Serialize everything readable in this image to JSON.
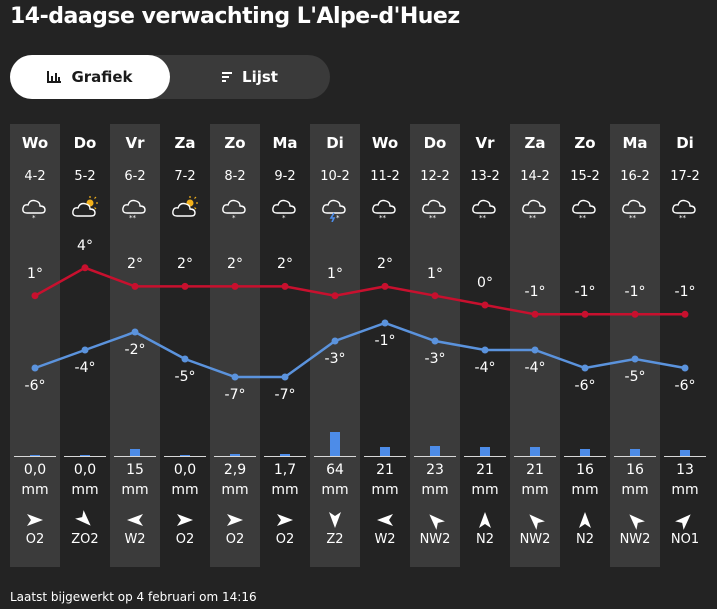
{
  "title": "14-daagse verwachting L'Alpe-d'Huez",
  "tabs": [
    {
      "label": "Grafiek",
      "active": true
    },
    {
      "label": "Lijst",
      "active": false
    }
  ],
  "colors": {
    "max_temp": "#c8102e",
    "min_temp": "#5b93dd",
    "precip": "#4d8ce8",
    "shade": "#3b3b3b"
  },
  "days": [
    {
      "day": "Wo",
      "date": "4-2",
      "icon": "cloud-snow-icon",
      "max": "1°",
      "min": "-6°",
      "precip": "0,0",
      "unit": "mm",
      "wind_dir": "O2",
      "wind_icon": "arrow-east-icon"
    },
    {
      "day": "Do",
      "date": "5-2",
      "icon": "sun-cloud-icon",
      "max": "4°",
      "min": "-4°",
      "precip": "0,0",
      "unit": "mm",
      "wind_dir": "ZO2",
      "wind_icon": "arrow-southeast-icon"
    },
    {
      "day": "Vr",
      "date": "6-2",
      "icon": "cloud-heavy-snow-icon",
      "max": "2°",
      "min": "-2°",
      "precip": "15",
      "unit": "mm",
      "wind_dir": "W2",
      "wind_icon": "arrow-west-icon"
    },
    {
      "day": "Za",
      "date": "7-2",
      "icon": "sun-cloud-icon",
      "max": "2°",
      "min": "-5°",
      "precip": "0,0",
      "unit": "mm",
      "wind_dir": "O2",
      "wind_icon": "arrow-east-icon"
    },
    {
      "day": "Zo",
      "date": "8-2",
      "icon": "cloud-snow-icon",
      "max": "2°",
      "min": "-7°",
      "precip": "2,9",
      "unit": "mm",
      "wind_dir": "O2",
      "wind_icon": "arrow-east-icon"
    },
    {
      "day": "Ma",
      "date": "9-2",
      "icon": "cloud-snow-icon",
      "max": "2°",
      "min": "-7°",
      "precip": "1,7",
      "unit": "mm",
      "wind_dir": "O2",
      "wind_icon": "arrow-east-icon"
    },
    {
      "day": "Di",
      "date": "10-2",
      "icon": "cloud-thunder-snow-icon",
      "max": "1°",
      "min": "-3°",
      "precip": "64",
      "unit": "mm",
      "wind_dir": "Z2",
      "wind_icon": "arrow-south-icon"
    },
    {
      "day": "Wo",
      "date": "11-2",
      "icon": "cloud-heavy-snow-icon",
      "max": "2°",
      "min": "-1°",
      "precip": "21",
      "unit": "mm",
      "wind_dir": "W2",
      "wind_icon": "arrow-west-icon"
    },
    {
      "day": "Do",
      "date": "12-2",
      "icon": "cloud-heavy-snow-icon",
      "max": "1°",
      "min": "-3°",
      "precip": "23",
      "unit": "mm",
      "wind_dir": "NW2",
      "wind_icon": "arrow-northwest-icon"
    },
    {
      "day": "Vr",
      "date": "13-2",
      "icon": "cloud-heavy-snow-icon",
      "max": "0°",
      "min": "-4°",
      "precip": "21",
      "unit": "mm",
      "wind_dir": "N2",
      "wind_icon": "arrow-north-icon"
    },
    {
      "day": "Za",
      "date": "14-2",
      "icon": "cloud-heavy-snow-icon",
      "max": "-1°",
      "min": "-4°",
      "precip": "21",
      "unit": "mm",
      "wind_dir": "NW2",
      "wind_icon": "arrow-northwest-icon"
    },
    {
      "day": "Zo",
      "date": "15-2",
      "icon": "cloud-heavy-snow-icon",
      "max": "-1°",
      "min": "-6°",
      "precip": "16",
      "unit": "mm",
      "wind_dir": "N2",
      "wind_icon": "arrow-north-icon"
    },
    {
      "day": "Ma",
      "date": "16-2",
      "icon": "cloud-heavy-snow-icon",
      "max": "-1°",
      "min": "-5°",
      "precip": "16",
      "unit": "mm",
      "wind_dir": "NW2",
      "wind_icon": "arrow-northwest-icon"
    },
    {
      "day": "Di",
      "date": "17-2",
      "icon": "cloud-heavy-snow-icon",
      "max": "-1°",
      "min": "-6°",
      "precip": "13",
      "unit": "mm",
      "wind_dir": "NO1",
      "wind_icon": "arrow-northeast-icon"
    }
  ],
  "chart_data": {
    "type": "line",
    "categories": [
      "4-2",
      "5-2",
      "6-2",
      "7-2",
      "8-2",
      "9-2",
      "10-2",
      "11-2",
      "12-2",
      "13-2",
      "14-2",
      "15-2",
      "16-2",
      "17-2"
    ],
    "series": [
      {
        "values": [
          1,
          4,
          2,
          2,
          2,
          2,
          1,
          2,
          1,
          0,
          -1,
          -1,
          -1,
          -1
        ]
      },
      {
        "values": [
          -6,
          -4,
          -2,
          -5,
          -7,
          -7,
          -3,
          -1,
          -3,
          -4,
          -4,
          -6,
          -5,
          -6
        ]
      }
    ],
    "precip_mm": [
      0.0,
      0.0,
      15,
      0.0,
      2.9,
      1.7,
      64,
      21,
      23,
      21,
      21,
      16,
      16,
      13
    ],
    "ylim": [
      -8,
      5
    ]
  },
  "footer": "Laatst bijgewerkt op 4 februari om 14:16"
}
